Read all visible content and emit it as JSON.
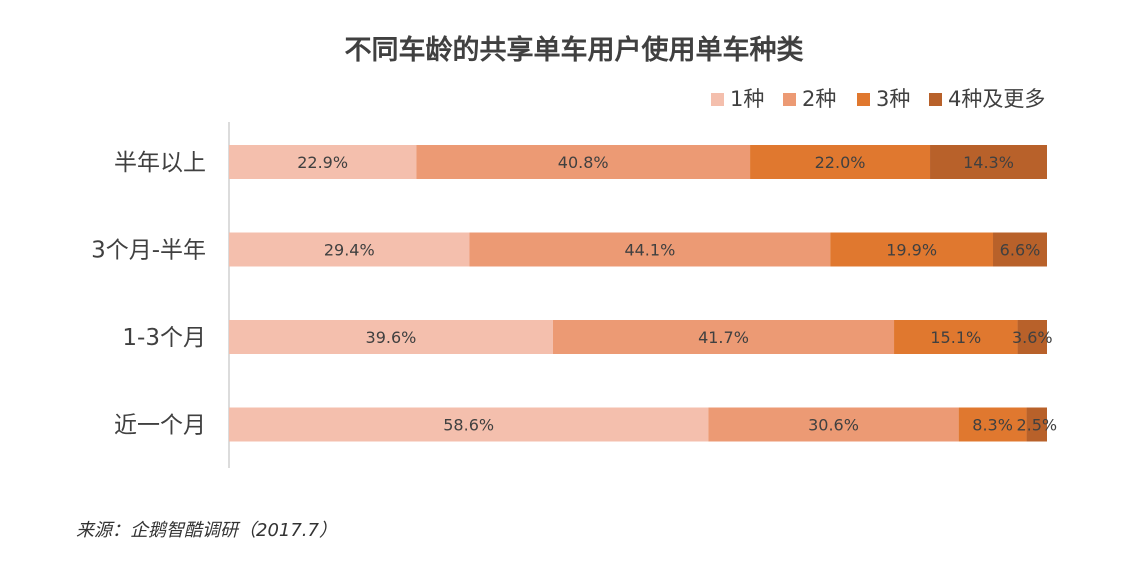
{
  "chart_data": {
    "type": "bar",
    "orientation": "horizontal",
    "stacked": true,
    "title": "不同车龄的共享单车用户使用单车种类",
    "categories": [
      "半年以上",
      "3个月-半年",
      "1-3个月",
      "近一个月"
    ],
    "series": [
      {
        "name": "1种",
        "values": [
          22.9,
          29.4,
          39.6,
          58.6
        ],
        "labels": [
          "22.9%",
          "29.4%",
          "39.6%",
          "58.6%"
        ],
        "color": "#F4BFAD"
      },
      {
        "name": "2种",
        "values": [
          40.8,
          44.1,
          41.7,
          30.6
        ],
        "labels": [
          "40.8%",
          "44.1%",
          "41.7%",
          "30.6%"
        ],
        "color": "#EC9A74"
      },
      {
        "name": "3种",
        "values": [
          22.0,
          19.9,
          15.1,
          8.3
        ],
        "labels": [
          "22.0%",
          "19.9%",
          "15.1%",
          "8.3%"
        ],
        "color": "#E0782F"
      },
      {
        "name": "4种及更多",
        "values": [
          14.3,
          6.6,
          3.6,
          2.5
        ],
        "labels": [
          "14.3%",
          "6.6%",
          "3.6%",
          "2.5%"
        ],
        "color": "#B8612A"
      }
    ],
    "xlim": [
      0,
      100
    ],
    "legend": "top-right",
    "grid": false
  },
  "source": "来源：企鹅智酷调研（2017.7）"
}
